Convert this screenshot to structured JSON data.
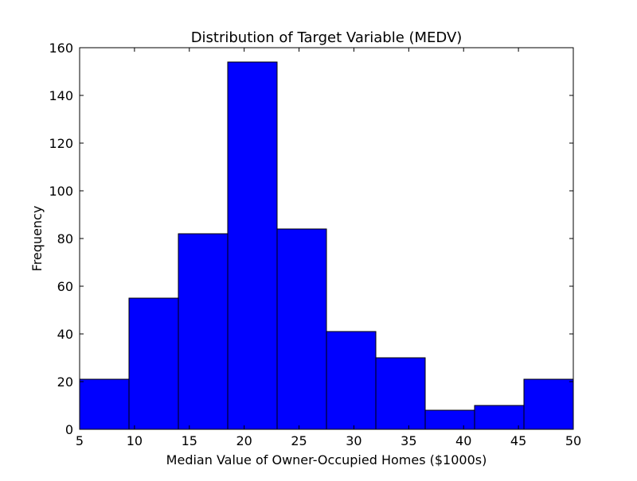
{
  "chart_data": {
    "type": "bar",
    "title": "Distribution of Target Variable (MEDV)",
    "xlabel": "Median Value of Owner-Occupied Homes ($1000s)",
    "ylabel": "Frequency",
    "bin_edges": [
      5,
      9.5,
      14,
      18.5,
      23,
      27.5,
      32,
      36.5,
      41,
      45.5,
      50
    ],
    "values": [
      21,
      55,
      82,
      154,
      84,
      41,
      30,
      8,
      10,
      21
    ],
    "xlim": [
      5,
      50
    ],
    "ylim": [
      0,
      160
    ],
    "xticks": [
      5,
      10,
      15,
      20,
      25,
      30,
      35,
      40,
      45,
      50
    ],
    "yticks": [
      0,
      20,
      40,
      60,
      80,
      100,
      120,
      140,
      160
    ],
    "grid": false,
    "bar_color": "#0000ff",
    "edge_color": "#000000"
  }
}
